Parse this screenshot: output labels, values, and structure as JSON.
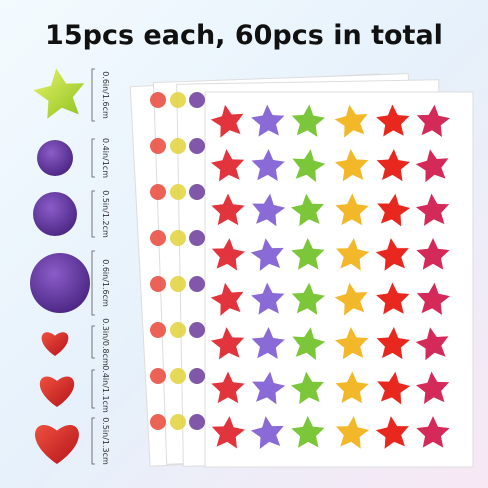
{
  "header": {
    "title": "15pcs each, 60pcs in total"
  },
  "sizes": [
    {
      "label": "0.6in/1.6cm"
    },
    {
      "label": "0.4in/1cm"
    },
    {
      "label": "0.5in/1.2cm"
    },
    {
      "label": "0.6in/1.6cm"
    },
    {
      "label": "0.3in/0.8cm"
    },
    {
      "label": "0.4in/1.1cm"
    },
    {
      "label": "0.5in/1.3cm"
    }
  ]
}
